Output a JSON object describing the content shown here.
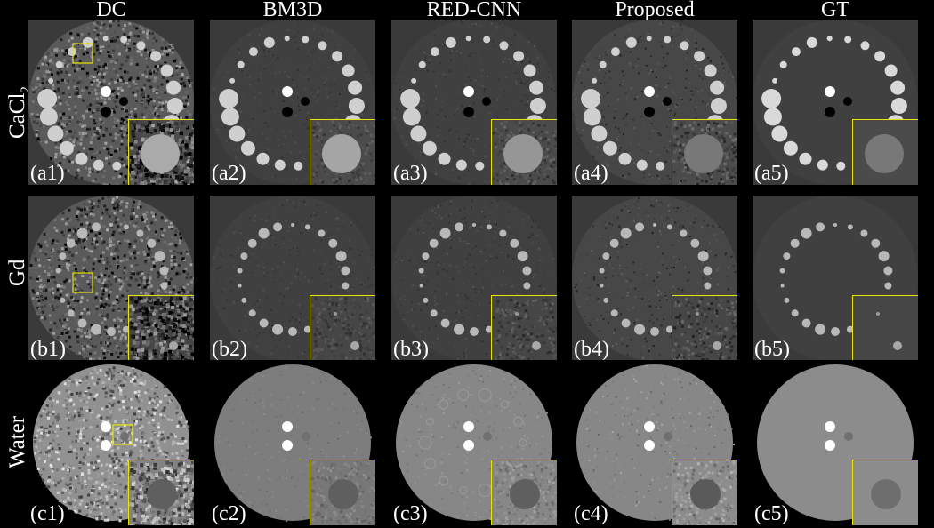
{
  "columns": [
    {
      "key": "DC",
      "label": "DC"
    },
    {
      "key": "BM3D",
      "label": "BM3D"
    },
    {
      "key": "RED",
      "label": "RED-CNN"
    },
    {
      "key": "PROP",
      "label": "Proposed"
    },
    {
      "key": "GT",
      "label": "GT"
    }
  ],
  "rows": [
    {
      "key": "a",
      "label": "CaCl",
      "label_sub": "2",
      "material": "CaCl2"
    },
    {
      "key": "b",
      "label": "Gd",
      "label_sub": "",
      "material": "Gd"
    },
    {
      "key": "c",
      "label": "Water",
      "label_sub": "",
      "material": "Water"
    }
  ],
  "panel_tags": {
    "a": [
      "(a1)",
      "(a2)",
      "(a3)",
      "(a4)",
      "(a5)"
    ],
    "b": [
      "(b1)",
      "(b2)",
      "(b3)",
      "(b4)",
      "(b5)"
    ],
    "c": [
      "(c1)",
      "(c2)",
      "(c3)",
      "(c4)",
      "(c5)"
    ]
  },
  "colors": {
    "background": "#000000",
    "roi_box": "#e6e600",
    "text": "#ffffff"
  }
}
